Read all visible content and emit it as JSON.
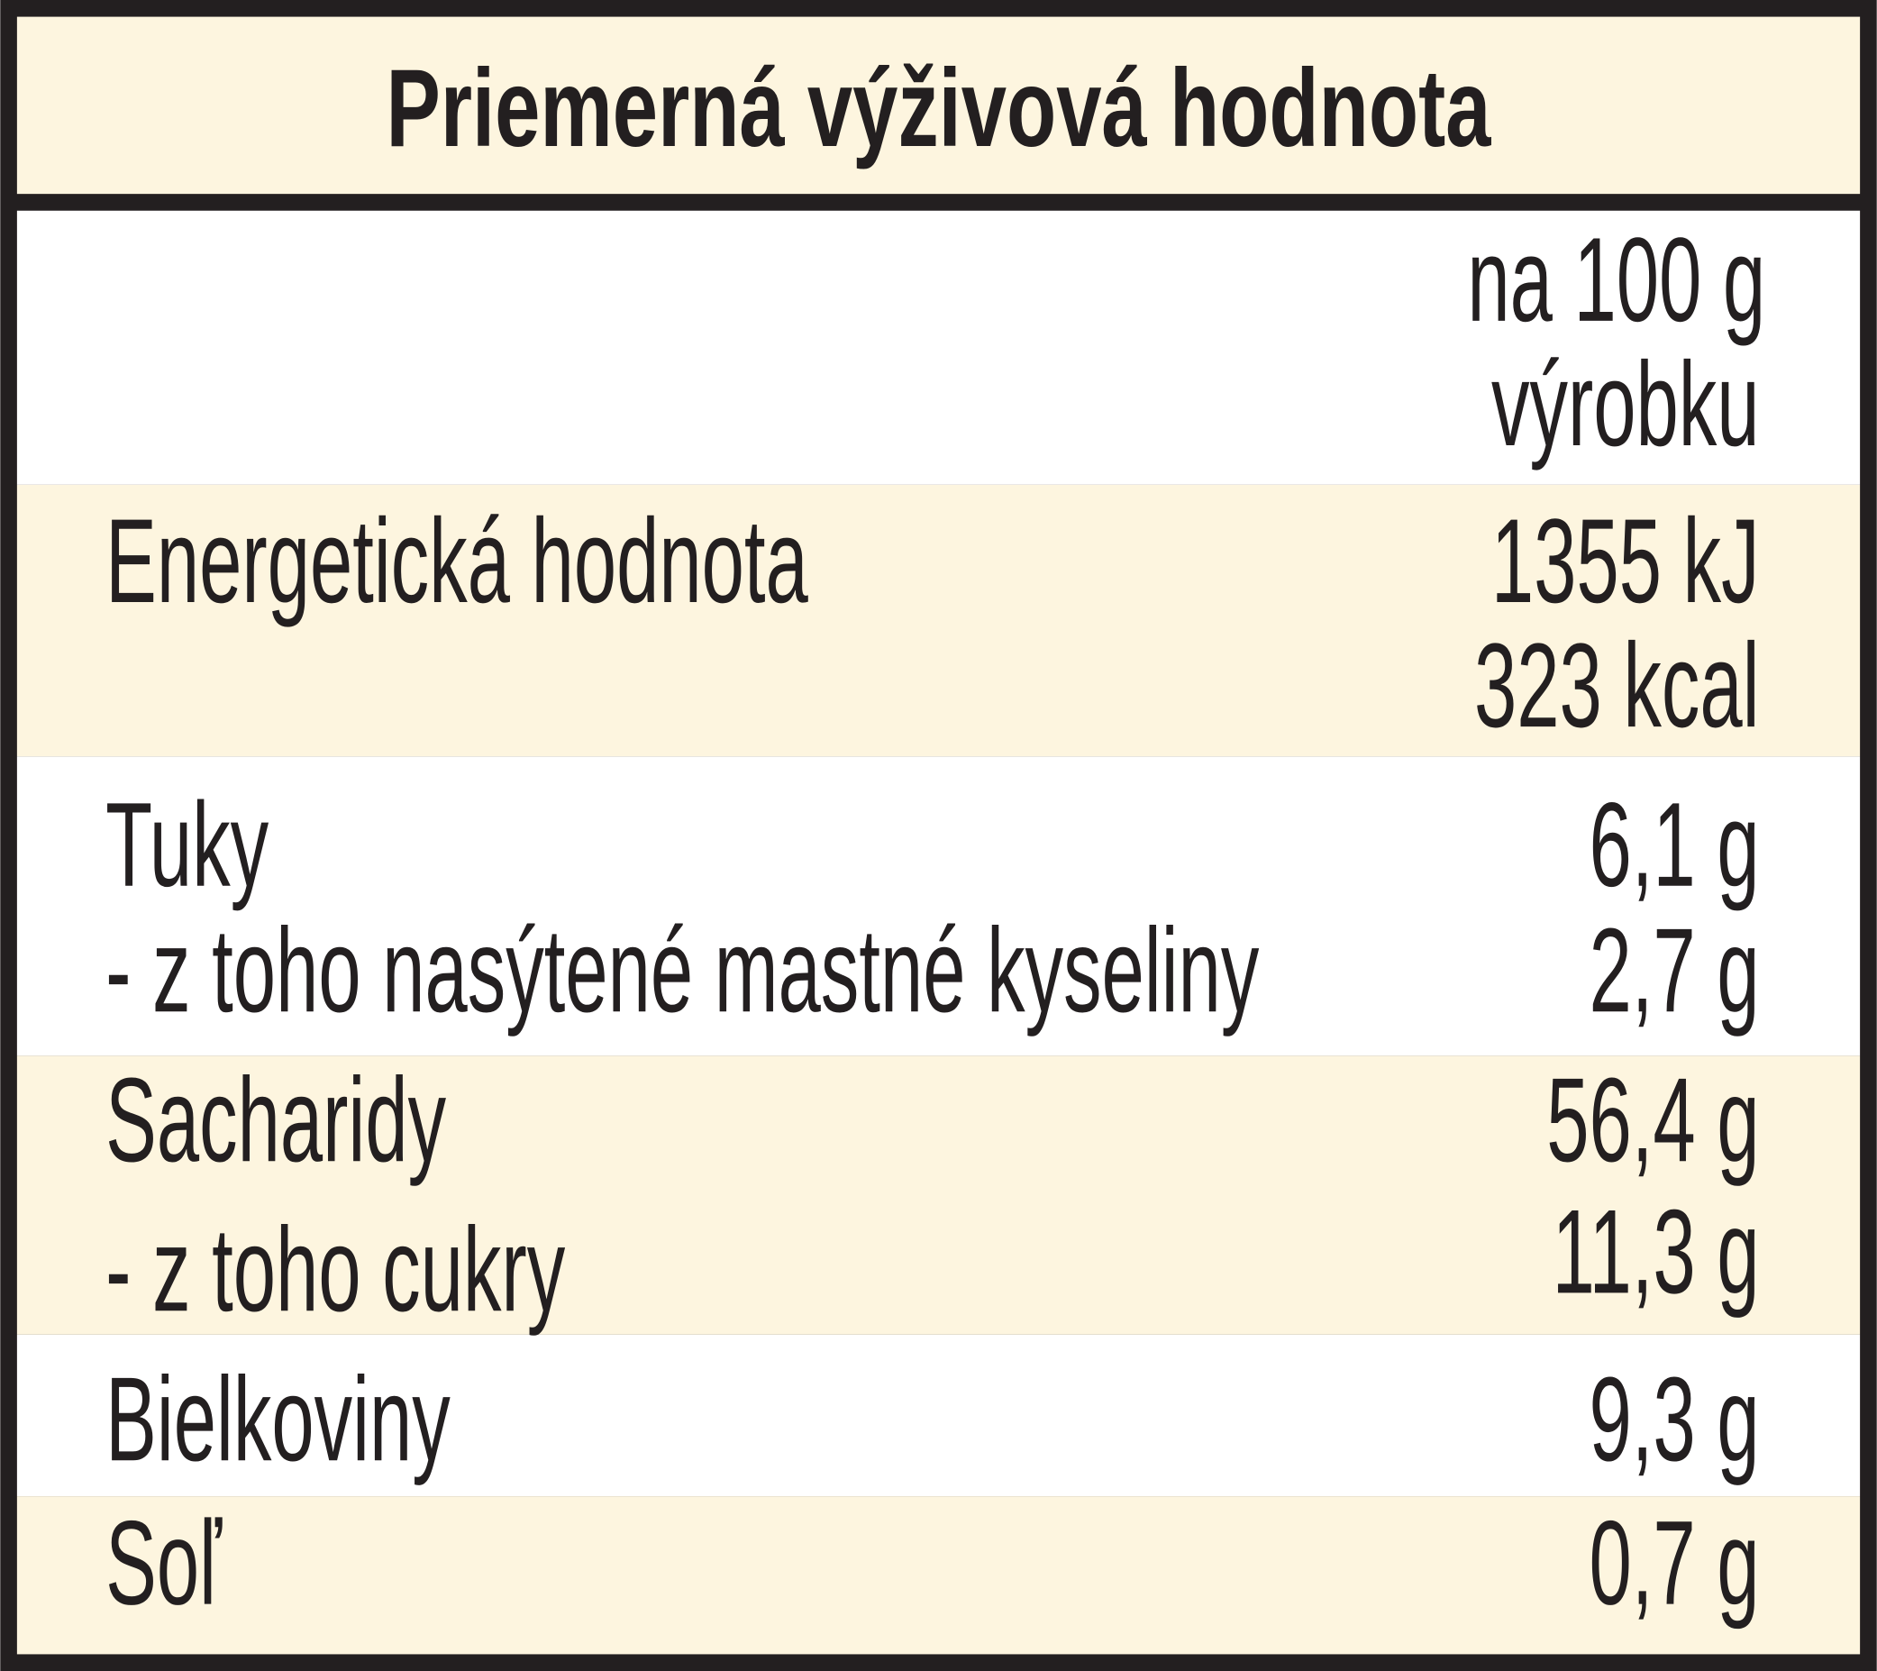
{
  "header": {
    "title": "Priemerná výživová hodnota"
  },
  "column_header": [
    "na 100 g",
    "výrobku"
  ],
  "rows": [
    {
      "labels": [
        "Energetická hodnota"
      ],
      "values": [
        "1355 kJ",
        "323 kcal"
      ]
    },
    {
      "labels": [
        "Tuky",
        "- z toho nasýtené mastné kyseliny"
      ],
      "values": [
        "6,1 g",
        "2,7 g"
      ]
    },
    {
      "labels": [
        "Sacharidy",
        "- z toho cukry"
      ],
      "values": [
        "56,4 g",
        "11,3 g"
      ]
    },
    {
      "labels": [
        "Bielkoviny"
      ],
      "values": [
        "9,3 g"
      ]
    },
    {
      "labels": [
        "Soľ"
      ],
      "values": [
        "0,7 g"
      ]
    }
  ]
}
